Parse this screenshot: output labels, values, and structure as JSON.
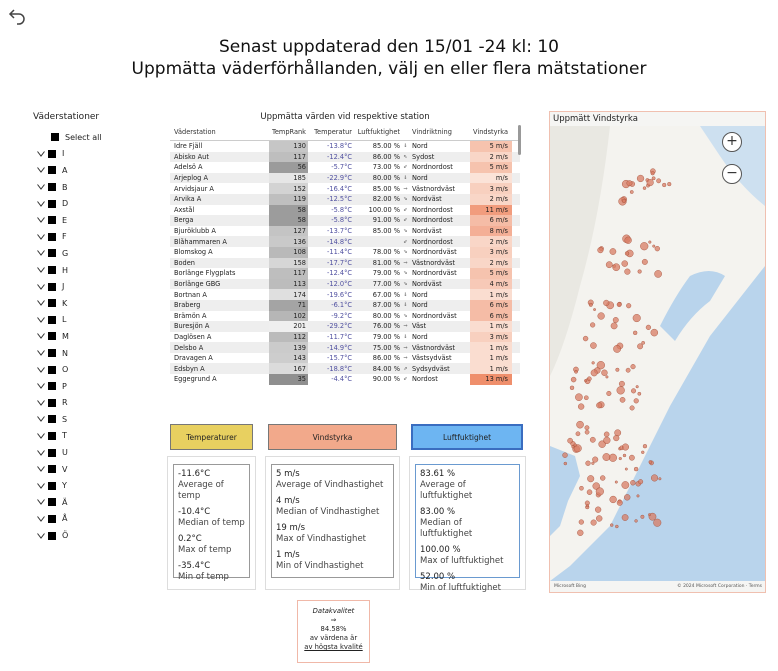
{
  "title_line1": "Senast uppdaterad den 15/01 -24 kl: 10",
  "title_line2": "Uppmätta väderförhållanden, välj en eller flera mätstationer",
  "slicer": {
    "header": "Väderstationer",
    "select_all": "Select all",
    "letters": [
      "I",
      "A",
      "B",
      "D",
      "E",
      "F",
      "G",
      "H",
      "J",
      "K",
      "L",
      "M",
      "N",
      "O",
      "P",
      "R",
      "S",
      "T",
      "U",
      "V",
      "Y",
      "Ä",
      "Å",
      "Ö"
    ]
  },
  "table": {
    "title": "Uppmätta värden vid respektive station",
    "headers": [
      "Väderstation",
      "TempRank",
      "Temperatur",
      "Luftfuktighet",
      "Vindriktning",
      "Vindstyrka"
    ],
    "rows": [
      {
        "station": "Idre Fjäll",
        "rank": "130",
        "temp": "-13.8°C",
        "hum": "85.00 %",
        "arrow": "⇓",
        "dir": "Nord",
        "wind": "5 m/s"
      },
      {
        "station": "Abisko Aut",
        "rank": "117",
        "temp": "-12.4°C",
        "hum": "86.00 %",
        "arrow": "⇖",
        "dir": "Sydost",
        "wind": "2 m/s"
      },
      {
        "station": "Adelsö A",
        "rank": "56",
        "temp": "-5.7°C",
        "hum": "73.00 %",
        "arrow": "⇙",
        "dir": "Nordnordost",
        "wind": "5 m/s"
      },
      {
        "station": "Arjeplog A",
        "rank": "185",
        "temp": "-22.9°C",
        "hum": "80.00 %",
        "arrow": "⇓",
        "dir": "Nord",
        "wind": "m/s"
      },
      {
        "station": "Arvidsjaur A",
        "rank": "152",
        "temp": "-16.4°C",
        "hum": "85.00 %",
        "arrow": "⇒",
        "dir": "Västnordväst",
        "wind": "3 m/s"
      },
      {
        "station": "Arvika A",
        "rank": "119",
        "temp": "-12.5°C",
        "hum": "82.00 %",
        "arrow": "⇘",
        "dir": "Nordväst",
        "wind": "2 m/s"
      },
      {
        "station": "Axstål",
        "rank": "58",
        "temp": "-5.8°C",
        "hum": "100.00 %",
        "arrow": "⇙",
        "dir": "Nordnordost",
        "wind": "11 m/s"
      },
      {
        "station": "Berga",
        "rank": "58",
        "temp": "-5.8°C",
        "hum": "91.00 %",
        "arrow": "⇙",
        "dir": "Nordnordost",
        "wind": "6 m/s"
      },
      {
        "station": "Bjuröklubb A",
        "rank": "127",
        "temp": "-13.7°C",
        "hum": "85.00 %",
        "arrow": "⇘",
        "dir": "Nordväst",
        "wind": "8 m/s"
      },
      {
        "station": "Blåhammaren A",
        "rank": "136",
        "temp": "-14.8°C",
        "hum": "",
        "arrow": "⇙",
        "dir": "Nordnordost",
        "wind": "2 m/s"
      },
      {
        "station": "Blomskog A",
        "rank": "108",
        "temp": "-11.4°C",
        "hum": "78.00 %",
        "arrow": "⇘",
        "dir": "Nordnordväst",
        "wind": "3 m/s"
      },
      {
        "station": "Boden",
        "rank": "158",
        "temp": "-17.7°C",
        "hum": "81.00 %",
        "arrow": "⇒",
        "dir": "Västnordväst",
        "wind": "2 m/s"
      },
      {
        "station": "Borlänge Flygplats",
        "rank": "117",
        "temp": "-12.4°C",
        "hum": "79.00 %",
        "arrow": "⇘",
        "dir": "Nordnordväst",
        "wind": "5 m/s"
      },
      {
        "station": "Borlänge GBG",
        "rank": "113",
        "temp": "-12.0°C",
        "hum": "77.00 %",
        "arrow": "⇘",
        "dir": "Nordväst",
        "wind": "4 m/s"
      },
      {
        "station": "Bortnan A",
        "rank": "174",
        "temp": "-19.6°C",
        "hum": "67.00 %",
        "arrow": "⇓",
        "dir": "Nord",
        "wind": "1 m/s"
      },
      {
        "station": "Braberg",
        "rank": "71",
        "temp": "-6.1°C",
        "hum": "87.00 %",
        "arrow": "⇓",
        "dir": "Nord",
        "wind": "6 m/s"
      },
      {
        "station": "Brämön A",
        "rank": "102",
        "temp": "-9.2°C",
        "hum": "80.00 %",
        "arrow": "⇘",
        "dir": "Nordnordväst",
        "wind": "6 m/s"
      },
      {
        "station": "Buresjön A",
        "rank": "201",
        "temp": "-29.2°C",
        "hum": "76.00 %",
        "arrow": "⇒",
        "dir": "Väst",
        "wind": "1 m/s"
      },
      {
        "station": "Daglösen A",
        "rank": "112",
        "temp": "-11.7°C",
        "hum": "79.00 %",
        "arrow": "⇓",
        "dir": "Nord",
        "wind": "3 m/s"
      },
      {
        "station": "Delsbo A",
        "rank": "139",
        "temp": "-14.9°C",
        "hum": "75.00 %",
        "arrow": "⇒",
        "dir": "Västnordväst",
        "wind": "1 m/s"
      },
      {
        "station": "Dravagen A",
        "rank": "143",
        "temp": "-15.7°C",
        "hum": "86.00 %",
        "arrow": "⇒",
        "dir": "Västsydväst",
        "wind": "1 m/s"
      },
      {
        "station": "Edsbyn A",
        "rank": "167",
        "temp": "-18.8°C",
        "hum": "84.00 %",
        "arrow": "⇗",
        "dir": "Sydsydväst",
        "wind": "1 m/s"
      },
      {
        "station": "Eggegrund A",
        "rank": "35",
        "temp": "-4.4°C",
        "hum": "90.00 %",
        "arrow": "⇙",
        "dir": "Nordost",
        "wind": "13 m/s"
      }
    ],
    "colors": {
      "rank_dark": "#8f8f8f",
      "rank_light": "#f4f4f4",
      "wind_light": "#fbe3d8",
      "wind_dark": "#ef8f6c"
    }
  },
  "categories": {
    "temp": {
      "label": "Temperaturer",
      "color": "#e8d060"
    },
    "wind": {
      "label": "Vindstyrka",
      "color": "#f2a98b"
    },
    "hum": {
      "label": "Luftfuktighet",
      "color": "#6db5f2"
    }
  },
  "stats": {
    "temp": [
      {
        "value": "-11.6°C",
        "label": "Average of temp"
      },
      {
        "value": "-10.4°C",
        "label": "Median of temp"
      },
      {
        "value": "0.2°C",
        "label": "Max of temp"
      },
      {
        "value": "-35.4°C",
        "label": "Min of temp"
      }
    ],
    "wind": [
      {
        "value": "5 m/s",
        "label": "Average of Vindhastighet"
      },
      {
        "value": "4 m/s",
        "label": "Median of Vindhastighet"
      },
      {
        "value": "19 m/s",
        "label": "Max of Vindhastighet"
      },
      {
        "value": "1 m/s",
        "label": "Min of Vindhastighet"
      }
    ],
    "hum": [
      {
        "value": "83.61 %",
        "label": "Average of luftfuktighet"
      },
      {
        "value": "83.00 %",
        "label": "Median of luftfuktighet"
      },
      {
        "value": "100.00 %",
        "label": "Max of luftfuktighet"
      },
      {
        "value": "52.00 %",
        "label": "Min of luftfuktighet"
      }
    ]
  },
  "map": {
    "title": "Uppmätt Vindstyrka",
    "zoom_in": "+",
    "zoom_out": "−",
    "attribution_left": "Microsoft Bing",
    "attribution_right": "© 2024 Microsoft Corporation · Terms",
    "colors": {
      "water": "#b9d4ec",
      "land": "#f4f3ef",
      "dot": "#d87c64"
    }
  },
  "data_quality": {
    "title": "Datakvalitet",
    "arrow": "⇒",
    "percent": "84.58%",
    "line1": "av värdena är",
    "line2": "av högsta kvalité"
  }
}
